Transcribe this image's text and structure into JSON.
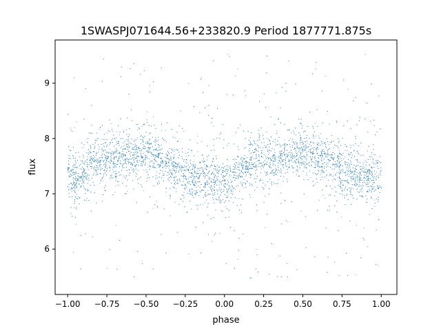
{
  "chart_data": {
    "type": "scatter",
    "title": "1SWASPJ071644.56+233820.9 Period 1877771.875s",
    "xlabel": "phase",
    "ylabel": "flux",
    "xlim": [
      -1.08,
      1.1
    ],
    "ylim": [
      5.18,
      9.78
    ],
    "xticks": [
      -1.0,
      -0.75,
      -0.5,
      -0.25,
      0.0,
      0.25,
      0.5,
      0.75,
      1.0
    ],
    "xtick_labels": [
      "−1.00",
      "−0.75",
      "−0.50",
      "−0.25",
      "0.00",
      "0.25",
      "0.50",
      "0.75",
      "1.00"
    ],
    "yticks": [
      6,
      7,
      8,
      9
    ],
    "ytick_labels": [
      "6",
      "7",
      "8",
      "9"
    ],
    "grid": false,
    "marker_color": "#1f77b4",
    "series": [
      {
        "x": [
          -1.0,
          -0.95,
          -0.9,
          -0.85,
          -0.8,
          -0.75,
          -0.7,
          -0.65,
          -0.6,
          -0.55,
          -0.5,
          -0.45,
          -0.4,
          -0.35,
          -0.3,
          -0.25,
          -0.2,
          -0.15,
          -0.1,
          -0.05,
          0.0,
          0.05,
          0.1,
          0.15,
          0.2,
          0.25,
          0.3,
          0.35,
          0.4,
          0.45,
          0.5,
          0.55,
          0.6,
          0.65,
          0.7,
          0.75,
          0.8,
          0.85,
          0.9,
          0.95,
          1.0
        ],
        "y": [
          7.3,
          7.25,
          7.35,
          7.6,
          7.62,
          7.65,
          7.6,
          7.7,
          7.65,
          7.7,
          7.75,
          7.7,
          7.6,
          7.5,
          7.45,
          7.35,
          7.3,
          7.3,
          7.3,
          7.25,
          7.2,
          7.3,
          7.4,
          7.55,
          7.6,
          7.65,
          7.62,
          7.65,
          7.7,
          7.72,
          7.75,
          7.7,
          7.65,
          7.6,
          7.55,
          7.45,
          7.35,
          7.3,
          7.3,
          7.25,
          7.3
        ]
      }
    ]
  }
}
